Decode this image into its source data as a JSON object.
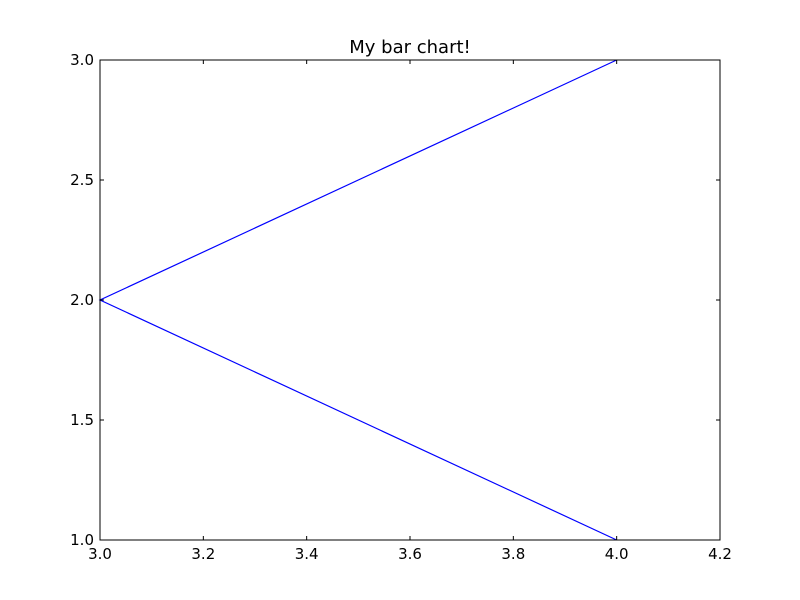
{
  "chart_data": {
    "type": "line",
    "title": "My bar chart!",
    "xlabel": "",
    "ylabel": "",
    "xlim": [
      3.0,
      4.2
    ],
    "ylim": [
      1.0,
      3.0
    ],
    "xticks": [
      "3.0",
      "3.2",
      "3.4",
      "3.6",
      "3.8",
      "4.0",
      "4.2"
    ],
    "yticks": [
      "1.0",
      "1.5",
      "2.0",
      "2.5",
      "3.0"
    ],
    "grid": false,
    "series": [
      {
        "x": [
          4.0,
          3.0,
          4.0
        ],
        "y": [
          3.0,
          2.0,
          1.0
        ],
        "color": "#0000ff"
      }
    ]
  }
}
